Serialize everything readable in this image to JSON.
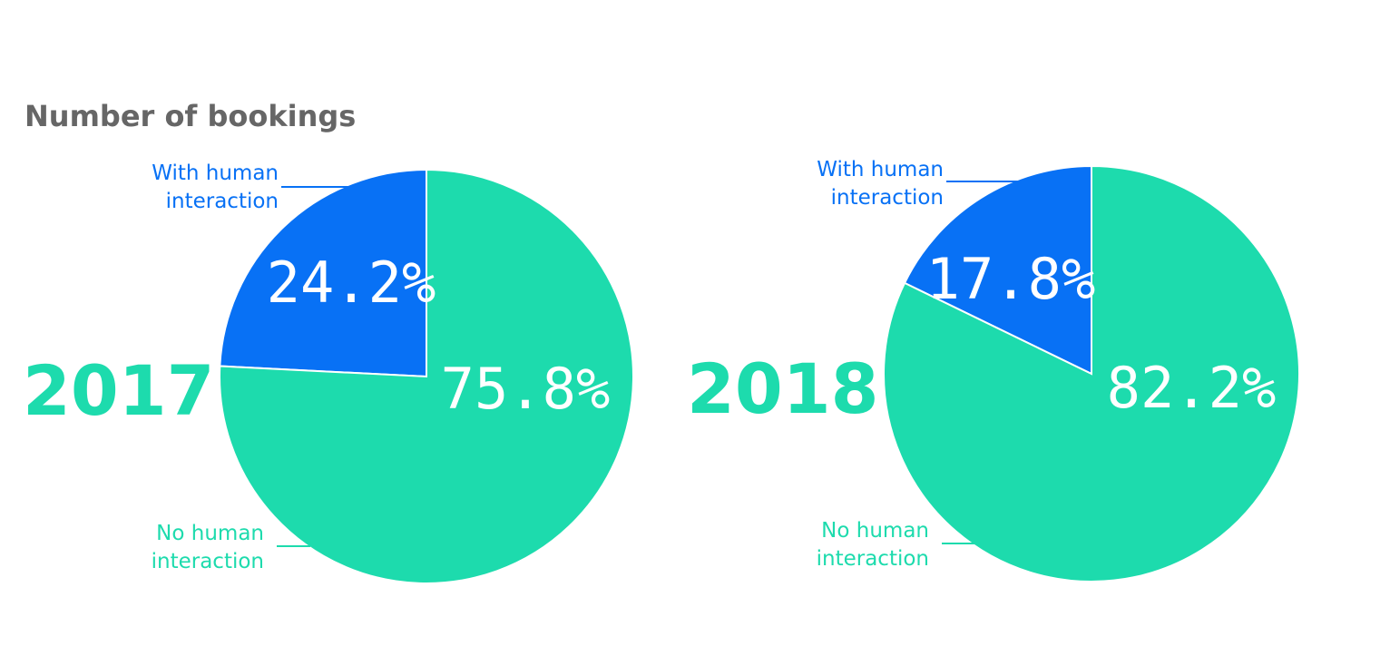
{
  "title": "Number of bookings",
  "colors": {
    "with_human": "#0871F5",
    "no_human": "#1DDBAD",
    "title": "#666666"
  },
  "chart_data": [
    {
      "type": "pie",
      "year_label": "2017",
      "slices": [
        {
          "label": "With human interaction",
          "value": 24.2,
          "value_label": "24.2%"
        },
        {
          "label": "No human interaction",
          "value": 75.8,
          "value_label": "75.8%"
        }
      ]
    },
    {
      "type": "pie",
      "year_label": "2018",
      "slices": [
        {
          "label": "With human interaction",
          "value": 17.8,
          "value_label": "17.8%"
        },
        {
          "label": "No human interaction",
          "value": 82.2,
          "value_label": "82.2%"
        }
      ]
    }
  ],
  "labels": {
    "with_human_line1": "With human",
    "with_human_line2": "interaction",
    "no_human_line1": "No human",
    "no_human_line2": "interaction"
  }
}
